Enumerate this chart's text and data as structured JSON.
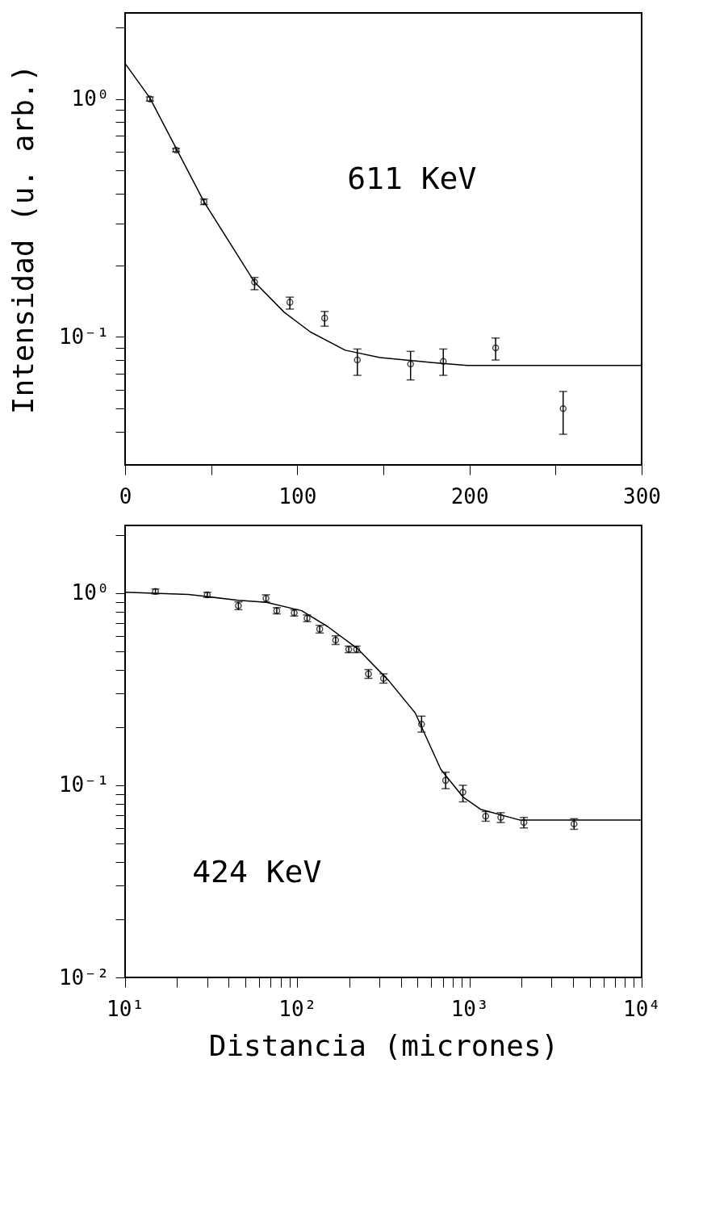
{
  "chart_data": [
    {
      "type": "scatter",
      "ylabel": "Intensidad (u. arb.)",
      "annotations": [
        "611 KeV"
      ],
      "log": "y",
      "grid": false,
      "xlim": [
        0,
        300
      ],
      "ylim": [
        0.029,
        2.3
      ],
      "xticks": [
        0,
        {
          "value": 50,
          "label": null
        },
        100,
        {
          "value": 150,
          "label": null
        },
        200,
        {
          "value": 250,
          "label": null
        },
        300
      ],
      "yticks": [
        {
          "value": 0.04,
          "label": null
        },
        {
          "value": 0.05,
          "label": null
        },
        {
          "value": 0.06,
          "label": null
        },
        {
          "value": 0.07,
          "label": null
        },
        {
          "value": 0.08,
          "label": null
        },
        {
          "value": 0.09,
          "label": null
        },
        {
          "value": 0.1,
          "label": "10⁻¹"
        },
        {
          "value": 0.2,
          "label": null
        },
        {
          "value": 0.3,
          "label": null
        },
        {
          "value": 0.4,
          "label": null
        },
        {
          "value": 0.5,
          "label": null
        },
        {
          "value": 0.6,
          "label": null
        },
        {
          "value": 0.7,
          "label": null
        },
        {
          "value": 0.8,
          "label": null
        },
        {
          "value": 0.9,
          "label": null
        },
        {
          "value": 1,
          "label": "10⁰"
        },
        {
          "value": 2,
          "label": null
        }
      ],
      "series": [
        {
          "type": "scatter",
          "marker": "circle",
          "color": "#000000",
          "x": [
            14.4,
            29.6,
            45.8,
            75.2,
            95.7,
            115.9,
            134.9,
            165.8,
            184.8,
            215.2,
            254.4
          ],
          "values": [
            1.0,
            0.61,
            0.37,
            0.17,
            0.14,
            0.12,
            0.08,
            0.077,
            0.079,
            0.09,
            0.05
          ],
          "errors": [
            [
              0.98,
              1.02
            ],
            [
              0.6,
              0.62
            ],
            [
              0.36,
              0.38
            ],
            [
              0.158,
              0.178
            ],
            [
              0.131,
              0.147
            ],
            [
              0.111,
              0.128
            ],
            [
              0.069,
              0.089
            ],
            [
              0.066,
              0.087
            ],
            [
              0.069,
              0.089
            ],
            [
              0.08,
              0.099
            ],
            [
              0.039,
              0.059
            ]
          ]
        },
        {
          "type": "line",
          "line_style": "solid",
          "color": "#000000",
          "x": [
            0,
            14.4,
            45.8,
            75.2,
            92.4,
            107.6,
            127.8,
            148,
            178.5,
            198.7,
            300
          ],
          "values": [
            1.41,
            1.01,
            0.37,
            0.17,
            0.127,
            0.105,
            0.088,
            0.082,
            0.078,
            0.076,
            0.076
          ]
        }
      ]
    },
    {
      "type": "scatter",
      "xlabel": "Distancia (micrones)",
      "annotations": [
        "424 KeV"
      ],
      "log": "xy",
      "grid": false,
      "xlim": [
        10,
        10000
      ],
      "ylim": [
        0.01,
        2.25
      ],
      "xticks": [
        {
          "value": 10,
          "label": "10¹"
        },
        {
          "value": 20,
          "label": null
        },
        {
          "value": 30,
          "label": null
        },
        {
          "value": 40,
          "label": null
        },
        {
          "value": 50,
          "label": null
        },
        {
          "value": 60,
          "label": null
        },
        {
          "value": 70,
          "label": null
        },
        {
          "value": 80,
          "label": null
        },
        {
          "value": 90,
          "label": null
        },
        {
          "value": 100,
          "label": "10²"
        },
        {
          "value": 200,
          "label": null
        },
        {
          "value": 300,
          "label": null
        },
        {
          "value": 400,
          "label": null
        },
        {
          "value": 500,
          "label": null
        },
        {
          "value": 600,
          "label": null
        },
        {
          "value": 700,
          "label": null
        },
        {
          "value": 800,
          "label": null
        },
        {
          "value": 900,
          "label": null
        },
        {
          "value": 1000,
          "label": "10³"
        },
        {
          "value": 2000,
          "label": null
        },
        {
          "value": 3000,
          "label": null
        },
        {
          "value": 4000,
          "label": null
        },
        {
          "value": 5000,
          "label": null
        },
        {
          "value": 6000,
          "label": null
        },
        {
          "value": 7000,
          "label": null
        },
        {
          "value": 8000,
          "label": null
        },
        {
          "value": 9000,
          "label": null
        },
        {
          "value": 10000,
          "label": "10⁴"
        }
      ],
      "yticks": [
        {
          "value": 0.01,
          "label": "10⁻²"
        },
        {
          "value": 0.02,
          "label": null
        },
        {
          "value": 0.03,
          "label": null
        },
        {
          "value": 0.04,
          "label": null
        },
        {
          "value": 0.05,
          "label": null
        },
        {
          "value": 0.06,
          "label": null
        },
        {
          "value": 0.07,
          "label": null
        },
        {
          "value": 0.08,
          "label": null
        },
        {
          "value": 0.09,
          "label": null
        },
        {
          "value": 0.1,
          "label": "10⁻¹"
        },
        {
          "value": 0.2,
          "label": null
        },
        {
          "value": 0.3,
          "label": null
        },
        {
          "value": 0.4,
          "label": null
        },
        {
          "value": 0.5,
          "label": null
        },
        {
          "value": 0.6,
          "label": null
        },
        {
          "value": 0.7,
          "label": null
        },
        {
          "value": 0.8,
          "label": null
        },
        {
          "value": 0.9,
          "label": null
        },
        {
          "value": 1,
          "label": "10⁰"
        },
        {
          "value": 2,
          "label": null
        }
      ],
      "series": [
        {
          "type": "scatter",
          "marker": "circle",
          "color": "#000000",
          "x": [
            15,
            30,
            45.5,
            65.8,
            76,
            96,
            114,
            135,
            167,
            199,
            221,
            259,
            317,
            527,
            727,
            916,
            1242,
            1520,
            2070,
            4050
          ],
          "values": [
            1.02,
            0.98,
            0.86,
            0.94,
            0.81,
            0.79,
            0.74,
            0.65,
            0.57,
            0.51,
            0.51,
            0.38,
            0.36,
            0.208,
            0.106,
            0.092,
            0.069,
            0.068,
            0.064,
            0.063
          ],
          "errors": [
            [
              0.99,
              1.05
            ],
            [
              0.95,
              1.01
            ],
            [
              0.82,
              0.9
            ],
            [
              0.9,
              0.98
            ],
            [
              0.78,
              0.84
            ],
            [
              0.76,
              0.82
            ],
            [
              0.71,
              0.77
            ],
            [
              0.62,
              0.68
            ],
            [
              0.54,
              0.6
            ],
            [
              0.49,
              0.53
            ],
            [
              0.49,
              0.53
            ],
            [
              0.36,
              0.4
            ],
            [
              0.34,
              0.38
            ],
            [
              0.189,
              0.229
            ],
            [
              0.096,
              0.117
            ],
            [
              0.082,
              0.1
            ],
            [
              0.065,
              0.073
            ],
            [
              0.064,
              0.072
            ],
            [
              0.06,
              0.068
            ],
            [
              0.059,
              0.067
            ]
          ]
        },
        {
          "type": "line",
          "line_style": "solid",
          "color": "#000000",
          "x": [
            10,
            23.3,
            45.5,
            66.3,
            106,
            150,
            226,
            340,
            484,
            682,
            916,
            1160,
            1950,
            10000
          ],
          "values": [
            1.01,
            0.985,
            0.917,
            0.895,
            0.81,
            0.67,
            0.51,
            0.35,
            0.238,
            0.121,
            0.087,
            0.075,
            0.066,
            0.066
          ]
        }
      ]
    }
  ]
}
